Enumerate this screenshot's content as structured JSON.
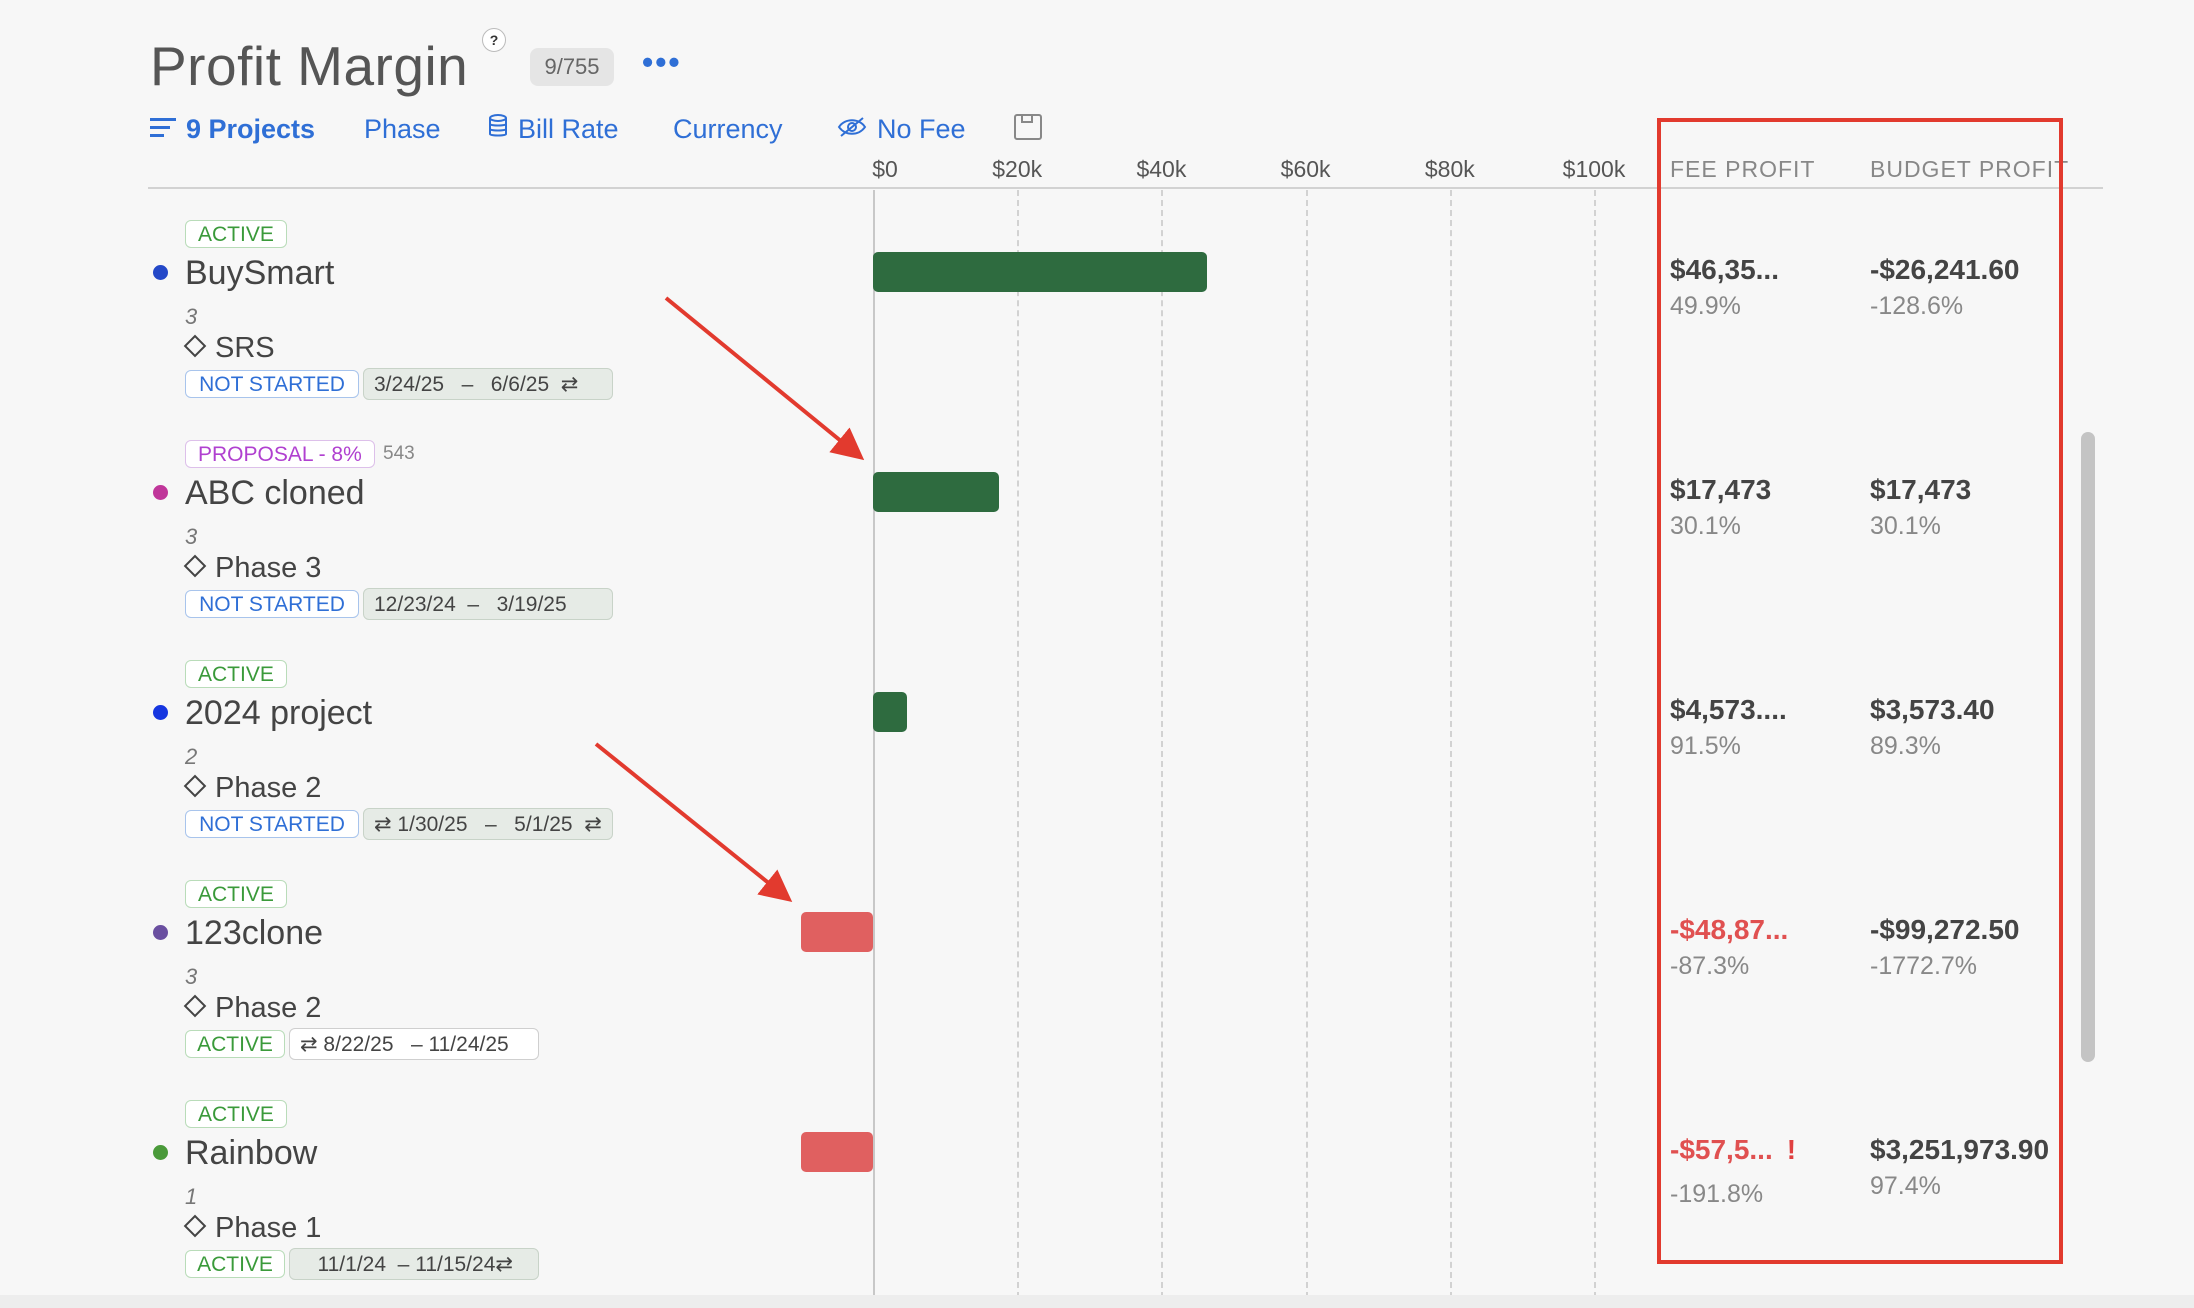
{
  "header": {
    "title": "Profit Margin",
    "help": "?",
    "count_badge": "9/755",
    "more": "•••"
  },
  "toolbar": {
    "projects": "9 Projects",
    "phase": "Phase",
    "bill_rate": "Bill Rate",
    "currency": "Currency",
    "no_fee": "No Fee"
  },
  "axis": {
    "ticks": [
      "$0",
      "$20k",
      "$40k",
      "$60k",
      "$80k",
      "$100k"
    ]
  },
  "columns": {
    "fee_profit": "FEE PROFIT",
    "budget_profit": "BUDGET PROFIT"
  },
  "colors": {
    "accent": "#2f6fd6",
    "positive_bar": "#2e6b3f",
    "negative_bar": "#e06060",
    "highlight_box": "#e23a2e"
  },
  "rows": [
    {
      "status": "ACTIVE",
      "name": "BuySmart",
      "dot_color": "#2448c8",
      "num": "3",
      "phase": "SRS",
      "phase_status": "NOT STARTED",
      "dates": "3/24/25   –   6/6/25  ⇄",
      "fee_value": "$46,35...",
      "fee_pct": "49.9%",
      "budget_value": "-$26,241.60",
      "budget_pct": "-128.6%",
      "fee_profit_amount": 46350
    },
    {
      "status": "PROPOSAL - 8%",
      "status_count": "543",
      "name": "ABC cloned",
      "dot_color": "#c0369a",
      "num": "3",
      "phase": "Phase 3",
      "phase_status": "NOT STARTED",
      "dates": "12/23/24  –   3/19/25",
      "fee_value": "$17,473",
      "fee_pct": "30.1%",
      "budget_value": "$17,473",
      "budget_pct": "30.1%",
      "fee_profit_amount": 17473
    },
    {
      "status": "ACTIVE",
      "name": "2024 project",
      "dot_color": "#1636e0",
      "num": "2",
      "phase": "Phase 2",
      "phase_status": "NOT STARTED",
      "dates": "⇄ 1/30/25   –   5/1/25  ⇄",
      "fee_value": "$4,573....",
      "fee_pct": "91.5%",
      "budget_value": "$3,573.40",
      "budget_pct": "89.3%",
      "fee_profit_amount": 4573
    },
    {
      "status": "ACTIVE",
      "name": "123clone",
      "dot_color": "#6a4fa0",
      "num": "3",
      "phase": "Phase 2",
      "phase_status": "ACTIVE",
      "dates": "⇄ 8/22/25   – 11/24/25",
      "fee_value": "-$48,87...",
      "fee_pct": "-87.3%",
      "budget_value": "-$99,272.50",
      "budget_pct": "-1772.7%",
      "fee_profit_amount": -48870
    },
    {
      "status": "ACTIVE",
      "name": "Rainbow",
      "dot_color": "#4a9a3a",
      "num": "1",
      "phase": "Phase 1",
      "phase_status": "ACTIVE",
      "dates": "   11/1/24  – 11/15/24⇄",
      "fee_value": "-$57,5...",
      "fee_warning": "!",
      "fee_pct": "-191.8%",
      "budget_value": "$3,251,973.90",
      "budget_pct": "97.4%",
      "fee_profit_amount": -57500
    }
  ]
}
